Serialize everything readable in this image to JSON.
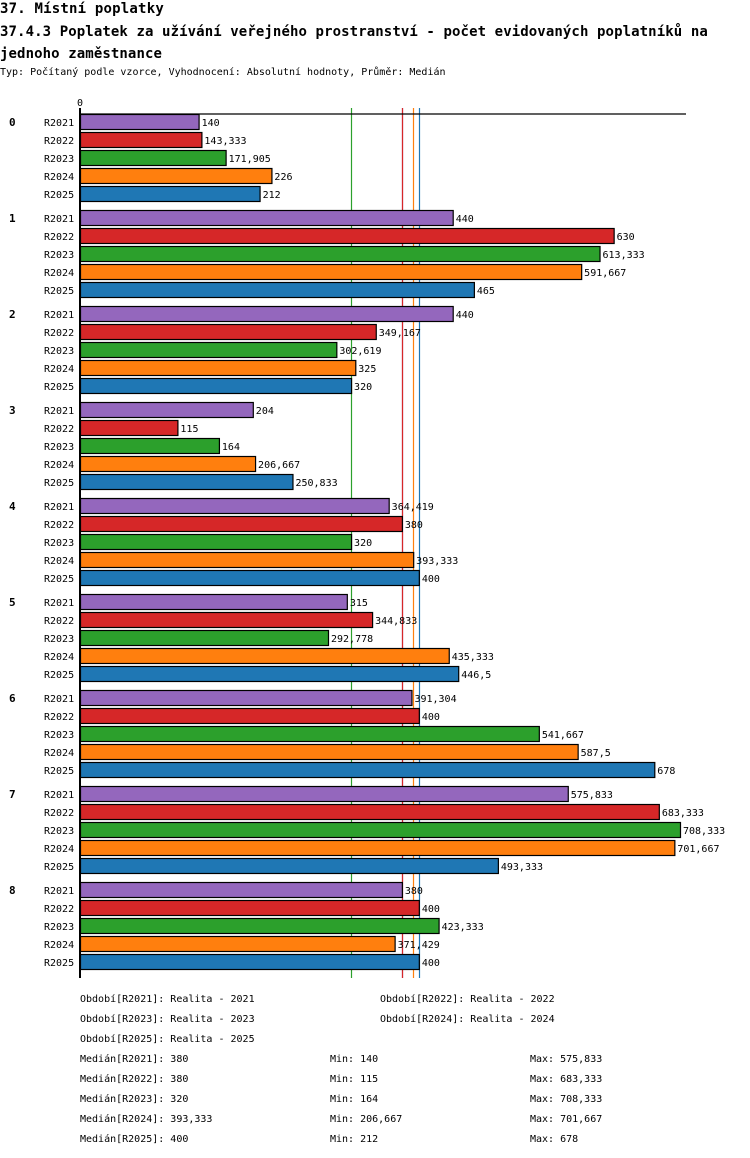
{
  "header": {
    "section_title": "37. Místní poplatky",
    "chart_title": "37.4.3 Poplatek za užívání veřejného prostranství - počet evidovaných poplatníků na jednoho zaměstnance",
    "subtitle": "Typ: Počítaný podle vzorce, Vyhodnocení: Absolutní hodnoty, Průměr: Medián"
  },
  "chart_data": {
    "type": "bar",
    "orientation": "horizontal",
    "title": "37.4.3 Poplatek za užívání veřejného prostranství - počet evidovaných poplatníků na jednoho zaměstnance",
    "xlabel": "",
    "ylabel": "",
    "x_tick_labels": [
      "0"
    ],
    "xlim": [
      0,
      708.333
    ],
    "grid": false,
    "decimal_separator": ",",
    "categories": [
      "0",
      "1",
      "2",
      "3",
      "4",
      "5",
      "6",
      "7",
      "8"
    ],
    "series": [
      {
        "name": "R2021",
        "color": "#9467bd",
        "values": [
          140,
          440,
          440,
          204,
          364.419,
          315,
          391.304,
          575.833,
          380
        ],
        "labels": [
          "140",
          "440",
          "440",
          "204",
          "364,419",
          "315",
          "391,304",
          "575,833",
          "380"
        ]
      },
      {
        "name": "R2022",
        "color": "#d62728",
        "values": [
          143.333,
          630,
          349.167,
          115,
          380,
          344.833,
          400,
          683.333,
          400
        ],
        "labels": [
          "143,333",
          "630",
          "349,167",
          "115",
          "380",
          "344,833",
          "400",
          "683,333",
          "400"
        ]
      },
      {
        "name": "R2023",
        "color": "#2ca02c",
        "values": [
          171.905,
          613.333,
          302.619,
          164,
          320,
          292.778,
          541.667,
          708.333,
          423.333
        ],
        "labels": [
          "171,905",
          "613,333",
          "302,619",
          "164",
          "320",
          "292,778",
          "541,667",
          "708,333",
          "423,333"
        ]
      },
      {
        "name": "R2024",
        "color": "#ff7f0e",
        "values": [
          226,
          591.667,
          325,
          206.667,
          393.333,
          435.333,
          587.5,
          701.667,
          371.429
        ],
        "labels": [
          "226",
          "591,667",
          "325",
          "206,667",
          "393,333",
          "435,333",
          "587,5",
          "701,667",
          "371,429"
        ]
      },
      {
        "name": "R2025",
        "color": "#1f77b4",
        "values": [
          212,
          465,
          320,
          250.833,
          400,
          446.5,
          678,
          493.333,
          400
        ],
        "labels": [
          "212",
          "465",
          "320",
          "250,833",
          "400",
          "446,5",
          "678",
          "493,333",
          "400"
        ]
      }
    ],
    "median_lines": [
      {
        "series": "R2021",
        "value": 380,
        "color": "#9467bd"
      },
      {
        "series": "R2022",
        "value": 380,
        "color": "#d62728"
      },
      {
        "series": "R2023",
        "value": 320,
        "color": "#2ca02c"
      },
      {
        "series": "R2024",
        "value": 393.333,
        "color": "#ff7f0e"
      },
      {
        "series": "R2025",
        "value": 400,
        "color": "#1f77b4"
      }
    ],
    "legend_placement": "bottom"
  },
  "legend": {
    "periods": [
      "Období[R2021]: Realita - 2021",
      "Období[R2022]: Realita - 2022",
      "Období[R2023]: Realita - 2023",
      "Období[R2024]: Realita - 2024",
      "Období[R2025]: Realita - 2025"
    ],
    "stats": [
      {
        "median": "Medián[R2021]: 380",
        "min": "Min: 140",
        "max": "Max: 575,833"
      },
      {
        "median": "Medián[R2022]: 380",
        "min": "Min: 115",
        "max": "Max: 683,333"
      },
      {
        "median": "Medián[R2023]: 320",
        "min": "Min: 164",
        "max": "Max: 708,333"
      },
      {
        "median": "Medián[R2024]: 393,333",
        "min": "Min: 206,667",
        "max": "Max: 701,667"
      },
      {
        "median": "Medián[R2025]: 400",
        "min": "Min: 212",
        "max": "Max: 678"
      }
    ]
  }
}
